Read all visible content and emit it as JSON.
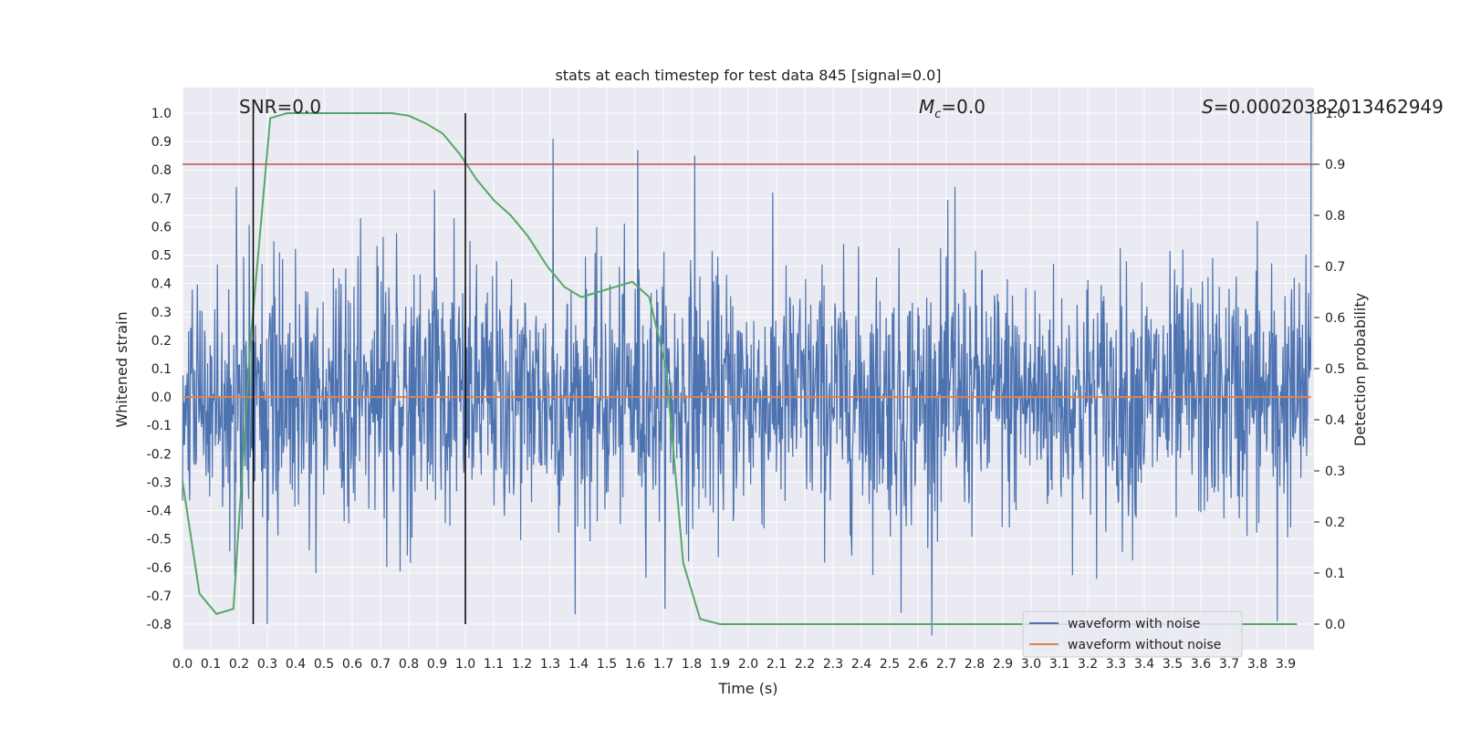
{
  "chart_data": {
    "type": "line",
    "title": "stats at each timestep for test data 845 [signal=0.0]",
    "xlabel": "Time (s)",
    "ylabel": "Whitened strain",
    "y2label": "Detection probability",
    "xlim": [
      0.0,
      4.0
    ],
    "ylim": [
      -0.89,
      1.09
    ],
    "y2lim": [
      -0.05,
      1.05
    ],
    "x_ticks": [
      "0.0",
      "0.1",
      "0.2",
      "0.3",
      "0.4",
      "0.5",
      "0.6",
      "0.7",
      "0.8",
      "0.9",
      "1.0",
      "1.1",
      "1.2",
      "1.3",
      "1.4",
      "1.5",
      "1.6",
      "1.7",
      "1.8",
      "1.9",
      "2.0",
      "2.1",
      "2.2",
      "2.3",
      "2.4",
      "2.5",
      "2.6",
      "2.7",
      "2.8",
      "2.9",
      "3.0",
      "3.1",
      "3.2",
      "3.3",
      "3.4",
      "3.5",
      "3.6",
      "3.7",
      "3.8",
      "3.9"
    ],
    "y_ticks": [
      "-0.8",
      "-0.7",
      "-0.6",
      "-0.5",
      "-0.4",
      "-0.3",
      "-0.2",
      "-0.1",
      "0.0",
      "0.1",
      "0.2",
      "0.3",
      "0.4",
      "0.5",
      "0.6",
      "0.7",
      "0.8",
      "0.9",
      "1.0"
    ],
    "y2_ticks": [
      "0.0",
      "0.1",
      "0.2",
      "0.3",
      "0.4",
      "0.5",
      "0.6",
      "0.7",
      "0.8",
      "0.9",
      "1.0"
    ],
    "grid": true,
    "legend_position": "lower-right",
    "annotations": {
      "snr": "SNR=0.0",
      "mc": "M",
      "mc_sub": "c",
      "mc_val": "=0.0",
      "s": "S",
      "s_val": "=0.00020382013462949"
    },
    "vlines": [
      0.25,
      1.0
    ],
    "hline_probability": 0.9,
    "series": [
      {
        "name": "waveform with noise",
        "color": "#4c72b0",
        "axis": "left",
        "noise_std": 0.22,
        "x_range": [
          0.0,
          3.99
        ],
        "peaks": [
          {
            "x": 0.19,
            "y": 0.74
          },
          {
            "x": 0.3,
            "y": -0.8
          },
          {
            "x": 0.63,
            "y": 0.63
          },
          {
            "x": 0.89,
            "y": 0.73
          },
          {
            "x": 0.96,
            "y": 0.63
          },
          {
            "x": 1.31,
            "y": 0.91
          },
          {
            "x": 1.61,
            "y": 0.87
          },
          {
            "x": 1.81,
            "y": 0.85
          },
          {
            "x": 2.54,
            "y": -0.76
          },
          {
            "x": 2.73,
            "y": 0.74
          },
          {
            "x": 3.8,
            "y": 0.62
          },
          {
            "x": 3.87,
            "y": -0.79
          },
          {
            "x": 3.99,
            "y": 1.0
          }
        ]
      },
      {
        "name": "waveform without noise",
        "color": "#dd8452",
        "axis": "left",
        "x": [
          0.0,
          3.99
        ],
        "y": [
          0.0,
          0.0
        ]
      },
      {
        "name": "detection probability",
        "color": "#55a868",
        "axis": "right",
        "x": [
          0.0,
          0.06,
          0.12,
          0.18,
          0.24,
          0.31,
          0.37,
          0.43,
          0.49,
          0.55,
          0.61,
          0.67,
          0.74,
          0.8,
          0.86,
          0.92,
          0.98,
          1.04,
          1.1,
          1.16,
          1.22,
          1.29,
          1.35,
          1.41,
          1.47,
          1.53,
          1.59,
          1.65,
          1.71,
          1.77,
          1.83,
          1.9,
          1.96,
          3.94
        ],
        "y": [
          0.28,
          0.06,
          0.02,
          0.03,
          0.55,
          0.99,
          1.0,
          1.0,
          1.0,
          1.0,
          1.0,
          1.0,
          1.0,
          0.995,
          0.98,
          0.96,
          0.92,
          0.87,
          0.83,
          0.8,
          0.76,
          0.7,
          0.66,
          0.64,
          0.65,
          0.66,
          0.67,
          0.64,
          0.5,
          0.12,
          0.01,
          0.0,
          0.0,
          0.0
        ]
      }
    ],
    "hline_color": "#c44e52",
    "vline_color": "#000000"
  }
}
